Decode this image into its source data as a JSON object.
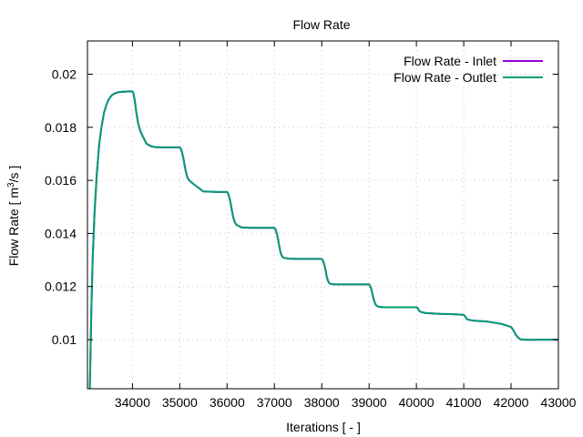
{
  "chart_data": {
    "type": "line",
    "title": "Flow Rate",
    "xlabel": "Iterations [ - ]",
    "ylabel": {
      "pre": "Flow Rate [ m",
      "sup": "3",
      "post": "/s ]"
    },
    "xlim": [
      33050,
      43000
    ],
    "ylim": [
      0.00815,
      0.02125
    ],
    "xticks": [
      34000,
      35000,
      36000,
      37000,
      38000,
      39000,
      40000,
      41000,
      42000,
      43000
    ],
    "yticks": [
      0.01,
      0.012,
      0.014,
      0.016,
      0.018,
      0.02
    ],
    "grid": true,
    "legend_position": "top-right",
    "series": [
      {
        "name": "Flow Rate - Inlet",
        "color": "#9400d3",
        "x": [
          33100,
          33130,
          33160,
          33200,
          33250,
          33300,
          33350,
          33400,
          33450,
          33500,
          33550,
          33600,
          33650,
          33700,
          33750,
          33800,
          33850,
          33900,
          33950,
          34000,
          34020,
          34050,
          34080,
          34120,
          34160,
          34200,
          34300,
          34400,
          34500,
          34600,
          34700,
          34800,
          34900,
          35000,
          35020,
          35050,
          35080,
          35100,
          35130,
          35160,
          35200,
          35300,
          35500,
          35800,
          36000,
          36020,
          36050,
          36080,
          36100,
          36130,
          36160,
          36200,
          36300,
          36500,
          36800,
          37000,
          37020,
          37050,
          37080,
          37100,
          37130,
          37160,
          37200,
          37300,
          37500,
          37800,
          38000,
          38020,
          38050,
          38080,
          38100,
          38130,
          38160,
          38200,
          38300,
          38500,
          38800,
          39000,
          39020,
          39050,
          39080,
          39100,
          39130,
          39160,
          39200,
          39300,
          39500,
          39800,
          40000,
          40030,
          40060,
          40100,
          40200,
          40500,
          40800,
          41000,
          41030,
          41060,
          41100,
          41200,
          41500,
          41800,
          42000,
          42050,
          42100,
          42150,
          42200,
          42300,
          42400,
          42600,
          43000
        ],
        "y": [
          0.00815,
          0.011,
          0.013,
          0.0148,
          0.0163,
          0.0174,
          0.01805,
          0.01855,
          0.01885,
          0.01905,
          0.01918,
          0.01925,
          0.01929,
          0.01932,
          0.01933,
          0.01934,
          0.01934,
          0.01935,
          0.01935,
          0.01935,
          0.0193,
          0.019,
          0.0186,
          0.01815,
          0.0179,
          0.01772,
          0.01738,
          0.01728,
          0.01725,
          0.01724,
          0.01724,
          0.01724,
          0.01724,
          0.01724,
          0.0172,
          0.01705,
          0.0168,
          0.0166,
          0.01632,
          0.01612,
          0.016,
          0.01585,
          0.01558,
          0.01556,
          0.01556,
          0.01552,
          0.01535,
          0.0151,
          0.01488,
          0.01462,
          0.01443,
          0.01432,
          0.01423,
          0.01421,
          0.01421,
          0.01421,
          0.01417,
          0.014,
          0.01376,
          0.01355,
          0.01328,
          0.01314,
          0.01308,
          0.01305,
          0.01304,
          0.01304,
          0.01304,
          0.013,
          0.01285,
          0.01262,
          0.01242,
          0.01222,
          0.01212,
          0.01209,
          0.01208,
          0.01208,
          0.01208,
          0.01208,
          0.01203,
          0.01188,
          0.01165,
          0.0115,
          0.01135,
          0.01127,
          0.01124,
          0.01122,
          0.01122,
          0.01122,
          0.01122,
          0.01118,
          0.01108,
          0.01104,
          0.011,
          0.01097,
          0.01096,
          0.01093,
          0.01088,
          0.01078,
          0.01075,
          0.01072,
          0.01068,
          0.01059,
          0.01048,
          0.01035,
          0.01018,
          0.01008,
          0.01001,
          0.01,
          0.00999,
          0.01,
          0.01
        ]
      },
      {
        "name": "Flow Rate - Outlet",
        "color": "#009e73",
        "x": [
          33100,
          33130,
          33160,
          33200,
          33250,
          33300,
          33350,
          33400,
          33450,
          33500,
          33550,
          33600,
          33650,
          33700,
          33750,
          33800,
          33850,
          33900,
          33950,
          34000,
          34020,
          34050,
          34080,
          34120,
          34160,
          34200,
          34300,
          34400,
          34500,
          34600,
          34700,
          34800,
          34900,
          35000,
          35020,
          35050,
          35080,
          35100,
          35130,
          35160,
          35200,
          35300,
          35500,
          35800,
          36000,
          36020,
          36050,
          36080,
          36100,
          36130,
          36160,
          36200,
          36300,
          36500,
          36800,
          37000,
          37020,
          37050,
          37080,
          37100,
          37130,
          37160,
          37200,
          37300,
          37500,
          37800,
          38000,
          38020,
          38050,
          38080,
          38100,
          38130,
          38160,
          38200,
          38300,
          38500,
          38800,
          39000,
          39020,
          39050,
          39080,
          39100,
          39130,
          39160,
          39200,
          39300,
          39500,
          39800,
          40000,
          40030,
          40060,
          40100,
          40200,
          40500,
          40800,
          41000,
          41030,
          41060,
          41100,
          41200,
          41500,
          41800,
          42000,
          42050,
          42100,
          42150,
          42200,
          42300,
          42400,
          42600,
          43000
        ],
        "y": [
          0.00815,
          0.011,
          0.013,
          0.0148,
          0.0163,
          0.0174,
          0.01805,
          0.01855,
          0.01885,
          0.01905,
          0.01918,
          0.01925,
          0.01929,
          0.01932,
          0.01933,
          0.01934,
          0.01934,
          0.01935,
          0.01935,
          0.01935,
          0.0193,
          0.019,
          0.0186,
          0.01815,
          0.0179,
          0.01772,
          0.01738,
          0.01728,
          0.01725,
          0.01724,
          0.01724,
          0.01724,
          0.01724,
          0.01724,
          0.0172,
          0.01705,
          0.0168,
          0.0166,
          0.01632,
          0.01612,
          0.016,
          0.01585,
          0.01558,
          0.01556,
          0.01556,
          0.01552,
          0.01535,
          0.0151,
          0.01488,
          0.01462,
          0.01443,
          0.01432,
          0.01423,
          0.01421,
          0.01421,
          0.01421,
          0.01417,
          0.014,
          0.01376,
          0.01355,
          0.01328,
          0.01314,
          0.01308,
          0.01305,
          0.01304,
          0.01304,
          0.01304,
          0.013,
          0.01285,
          0.01262,
          0.01242,
          0.01222,
          0.01212,
          0.01209,
          0.01208,
          0.01208,
          0.01208,
          0.01208,
          0.01203,
          0.01188,
          0.01165,
          0.0115,
          0.01135,
          0.01127,
          0.01124,
          0.01122,
          0.01122,
          0.01122,
          0.01122,
          0.01118,
          0.01108,
          0.01104,
          0.011,
          0.01097,
          0.01096,
          0.01093,
          0.01088,
          0.01078,
          0.01075,
          0.01072,
          0.01068,
          0.01059,
          0.01048,
          0.01035,
          0.01018,
          0.01008,
          0.01001,
          0.01,
          0.00999,
          0.01,
          0.01
        ]
      }
    ]
  }
}
